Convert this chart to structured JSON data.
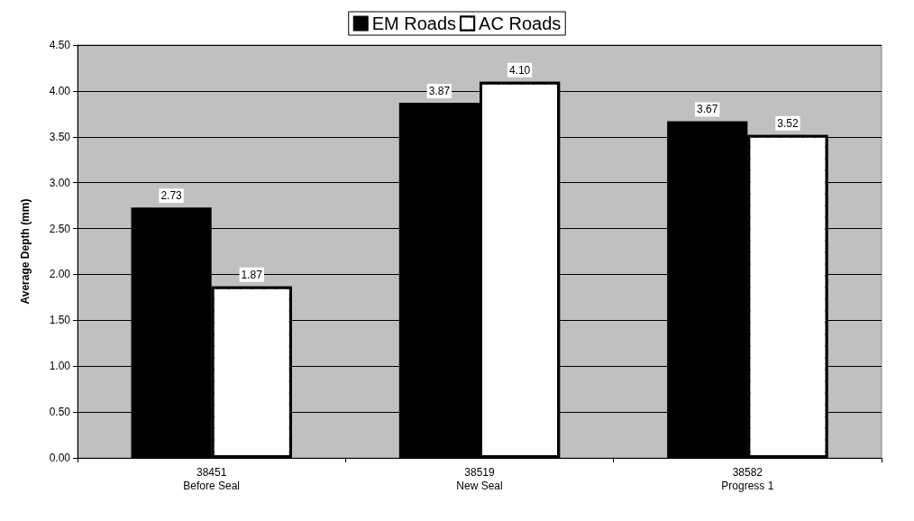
{
  "chart_data": {
    "type": "bar",
    "ylabel": "Average Depth (mm)",
    "categories": [
      "38451\nBefore Seal",
      "38519\nNew Seal",
      "38582\nProgress 1"
    ],
    "series": [
      {
        "name": "EM Roads",
        "color": "#000000",
        "values": [
          2.73,
          3.87,
          3.67
        ],
        "value_labels": [
          "2.73",
          "3.87",
          "3.67"
        ]
      },
      {
        "name": "AC Roads",
        "color": "#ffffff",
        "values": [
          1.87,
          4.1,
          3.52
        ],
        "value_labels": [
          "1.87",
          "4.10",
          "3.52"
        ]
      }
    ],
    "ylim": [
      0,
      4.5
    ],
    "yticks": [
      {
        "value": 0,
        "label": "0.00"
      },
      {
        "value": 0.5,
        "label": "0.50"
      },
      {
        "value": 1,
        "label": "1.00"
      },
      {
        "value": 1.5,
        "label": "1.50"
      },
      {
        "value": 2,
        "label": "2.00"
      },
      {
        "value": 2.5,
        "label": "2.50"
      },
      {
        "value": 3,
        "label": "3.00"
      },
      {
        "value": 3.5,
        "label": "3.50"
      },
      {
        "value": 4,
        "label": "4.00"
      },
      {
        "value": 4.5,
        "label": "4.50"
      }
    ],
    "grid": "y",
    "legend": "top"
  }
}
